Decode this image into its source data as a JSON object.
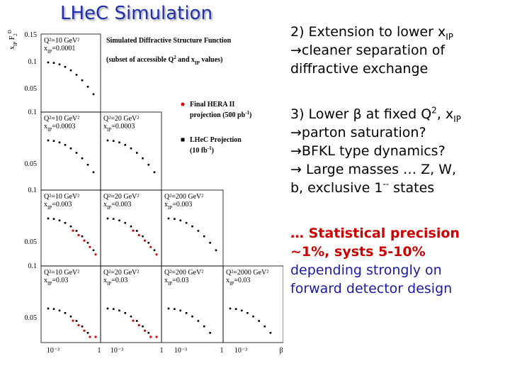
{
  "header": {
    "title": "LHeC Simulation"
  },
  "figure": {
    "title": "Simulated Diffractive Structure Function",
    "subtitle": [
      {
        "text": "(subset of accessible Q"
      },
      {
        "text": "2",
        "style": "sup"
      },
      {
        "text": " and x"
      },
      {
        "text": "IP",
        "style": "sub"
      },
      {
        "text": " values)"
      }
    ],
    "y_label": [
      {
        "text": "x"
      },
      {
        "text": "IP",
        "style": "sub"
      },
      {
        "text": " F"
      },
      {
        "text": "2",
        "style": "sub"
      },
      {
        "text": "D",
        "style": "sup"
      }
    ],
    "legend": [
      {
        "lines": [
          "Final HERA II",
          [
            {
              "text": "projection (500 pb"
            },
            {
              "text": "-1",
              "style": "sup"
            },
            {
              "text": ")"
            }
          ]
        ],
        "color": "#dd0000",
        "marker": "circle"
      },
      {
        "lines": [
          "LHeC Projection",
          [
            {
              "text": "(10 fb"
            },
            {
              "text": "-1",
              "style": "sup"
            },
            {
              "text": ")"
            }
          ]
        ],
        "color": "#000000",
        "marker": "square"
      }
    ],
    "top_yticks": [
      "0.15",
      "0.1",
      "0.05"
    ],
    "row_yticks": [
      "0.1",
      "0.05"
    ],
    "xticks": [
      "10⁻³",
      "1",
      "10⁻³",
      "1",
      "10⁻³",
      "1",
      "10⁻³",
      "β"
    ],
    "rows": [
      [
        {
          "q2": "Q²=10 GeV²",
          "xip": [
            {
              "text": "x"
            },
            {
              "text": "IP",
              "style": "sub"
            },
            {
              "text": "=0.0001"
            }
          ]
        }
      ],
      [
        {
          "q2": "Q²=10 GeV²",
          "xip": [
            {
              "text": "x"
            },
            {
              "text": "IP",
              "style": "sub"
            },
            {
              "text": "=0.0003"
            }
          ]
        },
        {
          "q2": "Q²=20 GeV²",
          "xip": [
            {
              "text": "x"
            },
            {
              "text": "IP",
              "style": "sub"
            },
            {
              "text": "=0.0003"
            }
          ]
        }
      ],
      [
        {
          "q2": "Q²=10 GeV²",
          "xip": [
            {
              "text": "x"
            },
            {
              "text": "IP",
              "style": "sub"
            },
            {
              "text": "=0.003"
            }
          ]
        },
        {
          "q2": "Q²=20 GeV²",
          "xip": [
            {
              "text": "x"
            },
            {
              "text": "IP",
              "style": "sub"
            },
            {
              "text": "=0.003"
            }
          ]
        },
        {
          "q2": "Q²=200 GeV²",
          "xip": [
            {
              "text": "x"
            },
            {
              "text": "IP",
              "style": "sub"
            },
            {
              "text": "=0.003"
            }
          ]
        }
      ],
      [
        {
          "q2": "Q²=10 GeV²",
          "xip": [
            {
              "text": "x"
            },
            {
              "text": "IP",
              "style": "sub"
            },
            {
              "text": "=0.03"
            }
          ]
        },
        {
          "q2": "Q²=20 GeV²",
          "xip": [
            {
              "text": "x"
            },
            {
              "text": "IP",
              "style": "sub"
            },
            {
              "text": "=0.03"
            }
          ]
        },
        {
          "q2": "Q²=200 GeV²",
          "xip": [
            {
              "text": "x"
            },
            {
              "text": "IP",
              "style": "sub"
            },
            {
              "text": "=0.03"
            }
          ]
        },
        {
          "q2": "Q²=2000 GeV²",
          "xip": [
            {
              "text": "x"
            },
            {
              "text": "IP",
              "style": "sub"
            },
            {
              "text": "=0.03"
            }
          ]
        }
      ]
    ]
  },
  "bullets": [
    {
      "color": "#000000",
      "bold": false,
      "lines": [
        [
          {
            "text": "2) Extension to lower x"
          },
          {
            "text": "IP",
            "style": "sub"
          }
        ],
        [
          {
            "text": "→cleaner separation of"
          }
        ],
        [
          {
            "text": "diffractive exchange"
          }
        ]
      ]
    },
    {
      "color": "#000000",
      "bold": false,
      "lines": [
        [
          {
            "text": "3) Lower β at fixed Q"
          },
          {
            "text": "2",
            "style": "sup"
          },
          {
            "text": ", x"
          },
          {
            "text": "IP",
            "style": "sub"
          }
        ],
        [
          {
            "text": "→parton saturation?"
          }
        ],
        [
          {
            "text": "→BFKL type dynamics?"
          }
        ],
        [
          {
            "text": "→ Large masses … Z, W,"
          }
        ],
        [
          {
            "text": "b, exclusive 1"
          },
          {
            "text": "--",
            "style": "sup"
          },
          {
            "text": " states"
          }
        ]
      ]
    },
    {
      "color": "#cc0000",
      "bold": true,
      "lines": [
        [
          {
            "text": "… Statistical precision"
          }
        ],
        [
          {
            "text": "~1%, systs 5-10%"
          }
        ]
      ]
    },
    {
      "color": "#1a1aa6",
      "bold": false,
      "lines": [
        [
          {
            "text": "depending strongly on"
          }
        ],
        [
          {
            "text": "forward detector design"
          }
        ]
      ]
    }
  ]
}
